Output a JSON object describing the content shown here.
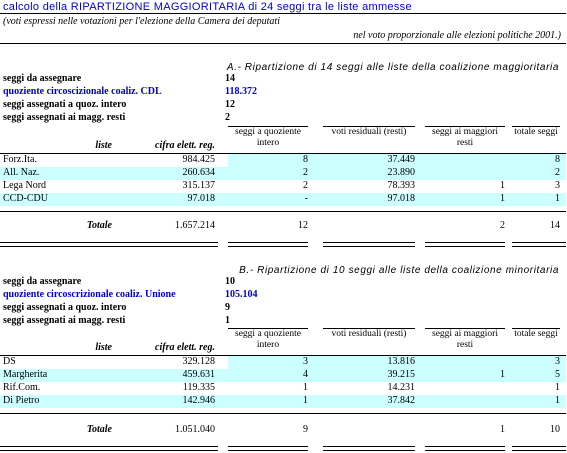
{
  "title": "calcolo della RIPARTIZIONE MAGGIORITARIA di 24 seggi tra le liste ammesse",
  "note": {
    "line1": "(voti espressi nelle votazioni per l'elezione della Camera dei deputati",
    "line2": "nel voto proporzionale alle elezioni politiche 2001.)"
  },
  "sections": [
    {
      "title": "A.- Ripartizione di 14 seggi alle liste della coalizione maggioritaria",
      "summary": [
        {
          "label": "seggi da assegnare",
          "value": "14",
          "highlight": false
        },
        {
          "label": "quoziente circoscizionale coaliz. CDL",
          "value": "118.372",
          "highlight": true
        },
        {
          "label": "seggi assegnati a quoz. intero",
          "value": "12",
          "highlight": false
        },
        {
          "label": "seggi assegnati ai magg. resti",
          "value": "2",
          "highlight": false
        }
      ],
      "headers": {
        "liste": "liste",
        "cifra": "cifra elett. reg.",
        "quoziente": "seggi a quoziente intero",
        "voti": "voti residuali (resti)",
        "maggiori": "seggi ai maggiori resti",
        "totale": "totale seggi"
      },
      "rows": [
        {
          "liste": "Forz.Ita.",
          "cifra": "984.425",
          "quoziente": "8",
          "voti": "37.449",
          "maggiori": "",
          "totale": "8"
        },
        {
          "liste": "All. Naz.",
          "cifra": "260.634",
          "quoziente": "2",
          "voti": "23.890",
          "maggiori": "",
          "totale": "2"
        },
        {
          "liste": "Lega Nord",
          "cifra": "315.137",
          "quoziente": "2",
          "voti": "78.393",
          "maggiori": "1",
          "totale": "3"
        },
        {
          "liste": "CCD-CDU",
          "cifra": "97.018",
          "quoziente": "-",
          "voti": "97.018",
          "maggiori": "1",
          "totale": "1"
        }
      ],
      "totals": {
        "label": "Totale",
        "cifra": "1.657.214",
        "quoziente": "12",
        "voti": "",
        "maggiori": "2",
        "totale": "14"
      }
    },
    {
      "title": "B.- Ripartizione di 10 seggi alle liste della coalizione minoritaria",
      "summary": [
        {
          "label": "seggi da assegnare",
          "value": "10",
          "highlight": false
        },
        {
          "label": "quoziente circoscrizionale coaliz. Unione",
          "value": "105.104",
          "highlight": true
        },
        {
          "label": "seggi assegnati a quoz. intero",
          "value": "9",
          "highlight": false
        },
        {
          "label": "seggi assegnati ai magg. resti",
          "value": "1",
          "highlight": false
        }
      ],
      "headers": {
        "liste": "liste",
        "cifra": "cifra elett. reg.",
        "quoziente": "seggi a quoziente intero",
        "voti": "voti residuali (resti)",
        "maggiori": "seggi ai maggiori resti",
        "totale": "totale seggi"
      },
      "rows": [
        {
          "liste": "DS",
          "cifra": "329.128",
          "quoziente": "3",
          "voti": "13.816",
          "maggiori": "",
          "totale": "3"
        },
        {
          "liste": "Margherita",
          "cifra": "459.631",
          "quoziente": "4",
          "voti": "39.215",
          "maggiori": "1",
          "totale": "5"
        },
        {
          "liste": "Rif.Com.",
          "cifra": "119.335",
          "quoziente": "1",
          "voti": "14.231",
          "maggiori": "",
          "totale": "1"
        },
        {
          "liste": "Di Pietro",
          "cifra": "142.946",
          "quoziente": "1",
          "voti": "37.842",
          "maggiori": "",
          "totale": "1"
        }
      ],
      "totals": {
        "label": "Totale",
        "cifra": "1.051.040",
        "quoziente": "9",
        "voti": "",
        "maggiori": "1",
        "totale": "10"
      }
    }
  ]
}
